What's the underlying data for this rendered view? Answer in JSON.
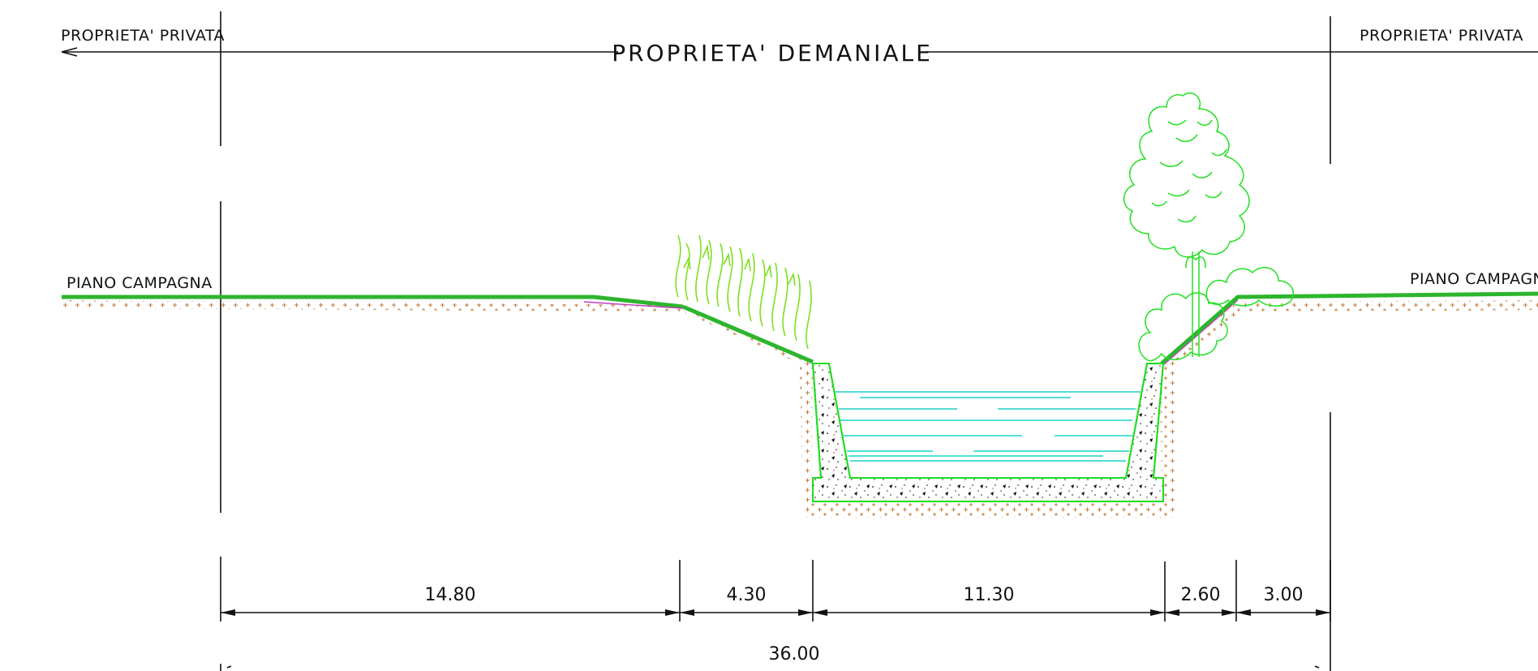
{
  "labels": {
    "private_left": "PROPRIETA' PRIVATA",
    "private_right": "PROPRIETA' PRIVATA",
    "state_property": "PROPRIETA' DEMANIALE",
    "ground_left": "PIANO CAMPAGNA",
    "ground_right": "PIANO CAMPAGNA"
  },
  "dimensions": {
    "segments": [
      "14.80",
      "4.30",
      "11.30",
      "2.60",
      "3.00"
    ],
    "total": "36.00"
  },
  "colors": {
    "line": "#111111",
    "grass": "#2db52d",
    "vegetation": "#7be01f",
    "tree": "#22e022",
    "water": "#19d3c5",
    "soil_marks": "#c07a3a",
    "slope_line": "#c040c0",
    "channel_outline": "#1fdc1f"
  },
  "icons": {
    "reeds": "reeds-icon",
    "tree": "tree-icon",
    "shrub": "shrub-icon",
    "arrow_left": "arrow-left-icon"
  }
}
